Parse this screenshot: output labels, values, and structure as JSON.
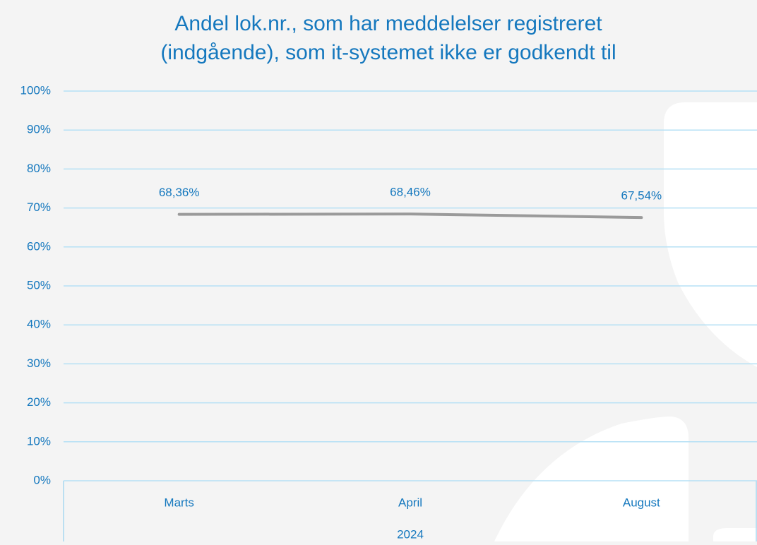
{
  "chart_data": {
    "type": "line",
    "title": [
      "Andel lok.nr., som har meddelelser registreret",
      "(indgående), som it-systemet ikke er godkendt til"
    ],
    "categories": [
      "Marts",
      "April",
      "August"
    ],
    "category_group": "2024",
    "series": [
      {
        "color": "#9a9a9a",
        "values": [
          68.36,
          68.46,
          67.54
        ],
        "value_labels": [
          "68,36%",
          "68,46%",
          "67,54%"
        ]
      }
    ],
    "ylim": [
      0,
      100
    ],
    "yticks": [
      {
        "value": 0,
        "label": "0%"
      },
      {
        "value": 10,
        "label": "10%"
      },
      {
        "value": 20,
        "label": "20%"
      },
      {
        "value": 30,
        "label": "30%"
      },
      {
        "value": 40,
        "label": "40%"
      },
      {
        "value": 50,
        "label": "50%"
      },
      {
        "value": 60,
        "label": "60%"
      },
      {
        "value": 70,
        "label": "70%"
      },
      {
        "value": 80,
        "label": "80%"
      },
      {
        "value": 90,
        "label": "90%"
      },
      {
        "value": 100,
        "label": "100%"
      }
    ],
    "grid": true
  }
}
